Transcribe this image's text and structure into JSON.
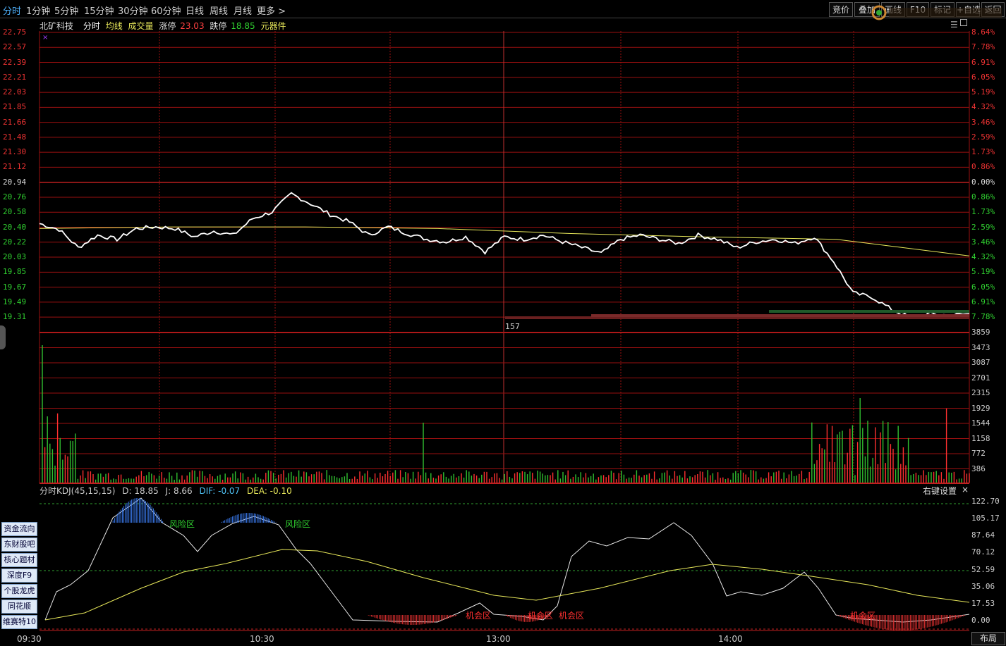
{
  "topbar": {
    "periods": [
      "分时",
      "1分钟",
      "5分钟",
      "15分钟",
      "30分钟",
      "60分钟",
      "日线",
      "周线",
      "月线",
      "更多 >"
    ],
    "right_buttons": [
      "竞价",
      "叠加",
      "画线",
      "F10",
      "标记",
      "+自选",
      "返回"
    ]
  },
  "info": {
    "stock_name": "北矿科技",
    "mode": "分时",
    "avg_label": "均线",
    "vol_label": "成交量",
    "limit_up_label": "涨停",
    "limit_up_value": "23.03",
    "limit_down_label": "跌停",
    "limit_down_value": "18.85",
    "sector": "元器件"
  },
  "price_axis_left": [
    "22.75",
    "22.57",
    "22.39",
    "22.21",
    "22.03",
    "21.85",
    "21.66",
    "21.48",
    "21.30",
    "21.12",
    "20.94",
    "20.76",
    "20.58",
    "20.40",
    "20.22",
    "20.03",
    "19.85",
    "19.67",
    "19.49",
    "19.31"
  ],
  "price_axis_right": [
    "8.64%",
    "7.78%",
    "6.91%",
    "6.05%",
    "5.19%",
    "4.32%",
    "3.46%",
    "2.59%",
    "1.73%",
    "0.86%",
    "0.00%",
    "0.86%",
    "1.73%",
    "2.59%",
    "3.46%",
    "4.32%",
    "5.19%",
    "6.05%",
    "6.91%",
    "7.78%"
  ],
  "volume_axis": [
    "3859",
    "3473",
    "3087",
    "2701",
    "2315",
    "1929",
    "1544",
    "1158",
    "772",
    "386"
  ],
  "volume_marker": "157",
  "kdj": {
    "title": "分时KDJ(45,15,15)",
    "d": "D: 18.85",
    "j": "J: 8.66",
    "dif": "DIF: -0.07",
    "dea": "DEA: -0.10",
    "settings": "右键设置",
    "close": "×",
    "axis": [
      "122.70",
      "105.17",
      "87.64",
      "70.12",
      "52.59",
      "35.06",
      "17.53",
      "0.00"
    ],
    "risk_label": "风险区",
    "chance_label": "机会区"
  },
  "time_axis": [
    "09:30",
    "10:30",
    "13:00",
    "14:00"
  ],
  "layout_button": "布局",
  "side_buttons": [
    "资金流向",
    "东财股吧",
    "核心题材",
    "深度F9",
    "个股龙虎",
    "同花顺",
    "维赛特10"
  ],
  "chart_data": {
    "type": "line",
    "title": "北矿科技 分时",
    "price_series_approx": [
      20.44,
      20.37,
      20.15,
      20.3,
      20.25,
      20.38,
      20.4,
      20.38,
      20.28,
      20.35,
      20.3,
      20.5,
      20.58,
      20.8,
      20.68,
      20.55,
      20.46,
      20.3,
      20.4,
      20.32,
      20.25,
      20.22,
      20.28,
      20.1,
      20.28,
      20.25,
      20.3,
      20.22,
      20.15,
      20.08,
      20.25,
      20.3,
      20.25,
      20.2,
      20.3,
      20.25,
      20.15,
      20.22,
      20.25,
      20.2,
      20.28,
      19.98,
      19.6,
      19.55,
      19.4,
      19.3,
      19.35,
      19.33,
      19.35
    ],
    "avg_series_approx": [
      20.38,
      20.4,
      20.4,
      20.38,
      20.32,
      20.28,
      20.25,
      20.05
    ],
    "ylim": [
      19.31,
      22.75
    ],
    "colors": {
      "price": "#ffffff",
      "avg": "#e8e85a",
      "up": "#ff3030",
      "down": "#30d030",
      "grid": "#9a1010"
    }
  }
}
